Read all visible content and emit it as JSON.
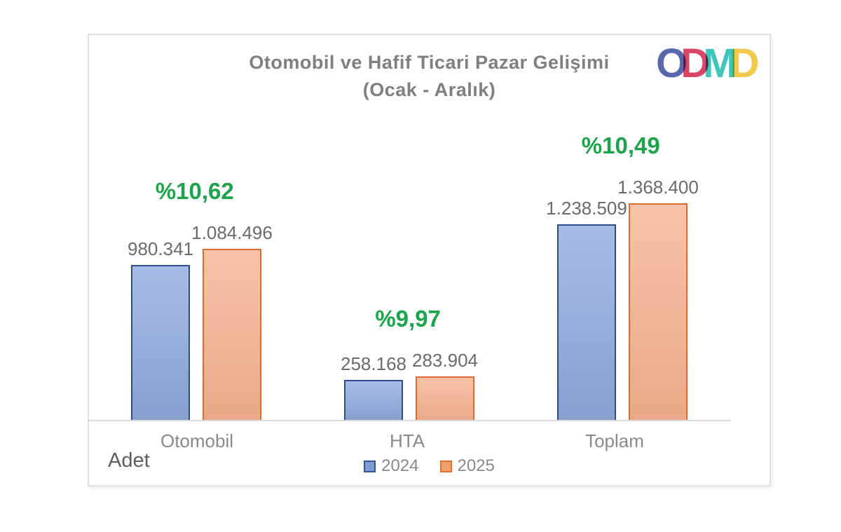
{
  "chart_data": {
    "type": "bar",
    "title": "Otomobil ve Hafif Ticari Pazar Gelişimi\n(Ocak - Aralık)",
    "title_lines": [
      "Otomobil ve Hafif Ticari Pazar Gelişimi",
      "(Ocak - Aralık)"
    ],
    "ylabel": "Adet",
    "categories": [
      "Otomobil",
      "HTA",
      "Toplam"
    ],
    "series": [
      {
        "name": "2024",
        "values": [
          980341,
          258168,
          1238509
        ]
      },
      {
        "name": "2025",
        "values": [
          1084496,
          283904,
          1368400
        ]
      }
    ],
    "groups": [
      {
        "category": "Otomobil",
        "label_2024": "980.341",
        "label_2025": "1.084.496",
        "growth": "%10,62"
      },
      {
        "category": "HTA",
        "label_2024": "258.168",
        "label_2025": "283.904",
        "growth": "%9,97"
      },
      {
        "category": "Toplam",
        "label_2024": "1.238.509",
        "label_2025": "1.368.400",
        "growth": "%10,49"
      }
    ],
    "legend_position": "bottom",
    "grid": false,
    "ylim": [
      0,
      1500000
    ]
  },
  "colors": {
    "bar_2024_fill": "#8fa9dc",
    "bar_2024_border": "#2e4c87",
    "bar_2025_fill": "#f6b292",
    "bar_2025_border": "#dc6f2f",
    "legend_2024_fill": "#7e9cd3",
    "legend_2024_border": "#2f5597",
    "legend_2025_fill": "#f0a06b",
    "legend_2025_border": "#de7231",
    "growth_green": "#1ca34c"
  },
  "legend": [
    {
      "label": "2024"
    },
    {
      "label": "2025"
    }
  ],
  "logo": {
    "letters": [
      "O",
      "D",
      "M",
      "D"
    ],
    "letter_colors": [
      "#4a5ba6",
      "#d6365a",
      "#2ec0b4",
      "#f0c63d"
    ]
  }
}
